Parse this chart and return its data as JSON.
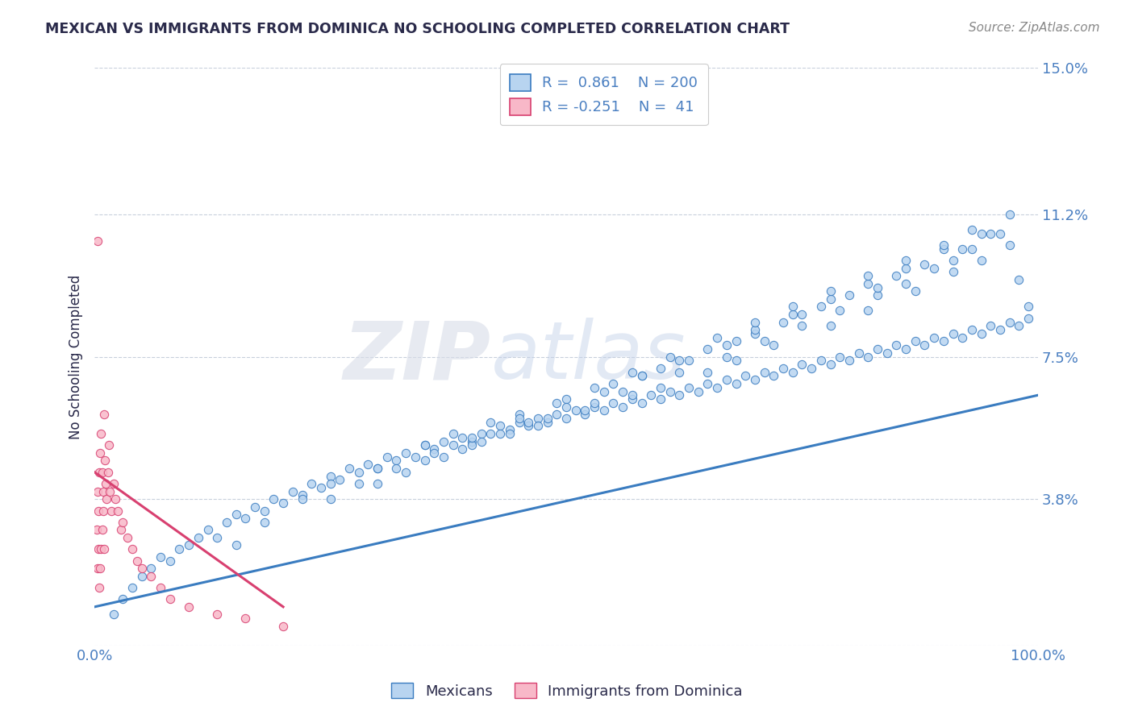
{
  "title": "MEXICAN VS IMMIGRANTS FROM DOMINICA NO SCHOOLING COMPLETED CORRELATION CHART",
  "source": "Source: ZipAtlas.com",
  "ylabel": "No Schooling Completed",
  "xlim": [
    0,
    1.0
  ],
  "ylim": [
    0,
    0.15
  ],
  "yticks": [
    0,
    0.038,
    0.075,
    0.112,
    0.15
  ],
  "ytick_labels": [
    "",
    "3.8%",
    "7.5%",
    "11.2%",
    "15.0%"
  ],
  "xtick_labels": [
    "0.0%",
    "100.0%"
  ],
  "blue_color": "#b8d4f0",
  "pink_color": "#f8b8c8",
  "line_blue": "#3a7cc0",
  "line_pink": "#d84070",
  "legend_text_color": "#4a7fc1",
  "title_color": "#2a2a4a",
  "axis_color": "#4a7fc1",
  "grid_color": "#c8d0dc",
  "scatter_blue_x": [
    0.02,
    0.03,
    0.04,
    0.05,
    0.06,
    0.07,
    0.08,
    0.09,
    0.1,
    0.11,
    0.12,
    0.13,
    0.14,
    0.15,
    0.16,
    0.17,
    0.18,
    0.19,
    0.2,
    0.21,
    0.22,
    0.23,
    0.24,
    0.25,
    0.26,
    0.27,
    0.28,
    0.29,
    0.3,
    0.31,
    0.32,
    0.33,
    0.34,
    0.35,
    0.36,
    0.37,
    0.38,
    0.39,
    0.4,
    0.41,
    0.42,
    0.43,
    0.44,
    0.45,
    0.46,
    0.47,
    0.48,
    0.49,
    0.5,
    0.51,
    0.52,
    0.53,
    0.54,
    0.55,
    0.56,
    0.57,
    0.58,
    0.59,
    0.6,
    0.61,
    0.62,
    0.63,
    0.64,
    0.65,
    0.66,
    0.67,
    0.68,
    0.69,
    0.7,
    0.71,
    0.72,
    0.73,
    0.74,
    0.75,
    0.76,
    0.77,
    0.78,
    0.79,
    0.8,
    0.81,
    0.82,
    0.83,
    0.84,
    0.85,
    0.86,
    0.87,
    0.88,
    0.89,
    0.9,
    0.91,
    0.92,
    0.93,
    0.94,
    0.95,
    0.96,
    0.97,
    0.98,
    0.99,
    0.15,
    0.18,
    0.22,
    0.25,
    0.3,
    0.35,
    0.38,
    0.42,
    0.45,
    0.5,
    0.55,
    0.58,
    0.62,
    0.65,
    0.7,
    0.73,
    0.77,
    0.8,
    0.85,
    0.88,
    0.92,
    0.95,
    0.4,
    0.43,
    0.47,
    0.52,
    0.57,
    0.6,
    0.65,
    0.68,
    0.72,
    0.78,
    0.82,
    0.87,
    0.91,
    0.94,
    0.97,
    0.35,
    0.39,
    0.44,
    0.48,
    0.53,
    0.56,
    0.62,
    0.67,
    0.71,
    0.75,
    0.79,
    0.83,
    0.86,
    0.89,
    0.93,
    0.96,
    0.3,
    0.33,
    0.37,
    0.41,
    0.46,
    0.5,
    0.54,
    0.58,
    0.63,
    0.67,
    0.7,
    0.74,
    0.78,
    0.82,
    0.86,
    0.9,
    0.94,
    0.25,
    0.28,
    0.32,
    0.36,
    0.4,
    0.45,
    0.49,
    0.53,
    0.57,
    0.61,
    0.66,
    0.7,
    0.74,
    0.78,
    0.82,
    0.86,
    0.9,
    0.93,
    0.97,
    0.98,
    0.99,
    0.6,
    0.68,
    0.75,
    0.83,
    0.91
  ],
  "scatter_blue_y": [
    0.008,
    0.012,
    0.015,
    0.018,
    0.02,
    0.023,
    0.022,
    0.025,
    0.026,
    0.028,
    0.03,
    0.028,
    0.032,
    0.034,
    0.033,
    0.036,
    0.035,
    0.038,
    0.037,
    0.04,
    0.039,
    0.042,
    0.041,
    0.044,
    0.043,
    0.046,
    0.045,
    0.047,
    0.046,
    0.049,
    0.048,
    0.05,
    0.049,
    0.052,
    0.051,
    0.053,
    0.052,
    0.054,
    0.053,
    0.055,
    0.055,
    0.057,
    0.056,
    0.058,
    0.057,
    0.059,
    0.058,
    0.06,
    0.059,
    0.061,
    0.06,
    0.062,
    0.061,
    0.063,
    0.062,
    0.064,
    0.063,
    0.065,
    0.064,
    0.066,
    0.065,
    0.067,
    0.066,
    0.068,
    0.067,
    0.069,
    0.068,
    0.07,
    0.069,
    0.071,
    0.07,
    0.072,
    0.071,
    0.073,
    0.072,
    0.074,
    0.073,
    0.075,
    0.074,
    0.076,
    0.075,
    0.077,
    0.076,
    0.078,
    0.077,
    0.079,
    0.078,
    0.08,
    0.079,
    0.081,
    0.08,
    0.082,
    0.081,
    0.083,
    0.082,
    0.084,
    0.083,
    0.085,
    0.026,
    0.032,
    0.038,
    0.042,
    0.046,
    0.052,
    0.055,
    0.058,
    0.06,
    0.064,
    0.068,
    0.07,
    0.074,
    0.077,
    0.081,
    0.084,
    0.088,
    0.091,
    0.096,
    0.099,
    0.103,
    0.107,
    0.052,
    0.055,
    0.057,
    0.061,
    0.065,
    0.067,
    0.071,
    0.074,
    0.078,
    0.083,
    0.087,
    0.092,
    0.097,
    0.1,
    0.104,
    0.048,
    0.051,
    0.055,
    0.059,
    0.063,
    0.066,
    0.071,
    0.075,
    0.079,
    0.083,
    0.087,
    0.091,
    0.094,
    0.098,
    0.103,
    0.107,
    0.042,
    0.045,
    0.049,
    0.053,
    0.058,
    0.062,
    0.066,
    0.07,
    0.074,
    0.078,
    0.082,
    0.086,
    0.09,
    0.094,
    0.098,
    0.103,
    0.107,
    0.038,
    0.042,
    0.046,
    0.05,
    0.054,
    0.059,
    0.063,
    0.067,
    0.071,
    0.075,
    0.08,
    0.084,
    0.088,
    0.092,
    0.096,
    0.1,
    0.104,
    0.108,
    0.112,
    0.095,
    0.088,
    0.072,
    0.079,
    0.086,
    0.093,
    0.1
  ],
  "scatter_pink_x": [
    0.002,
    0.003,
    0.003,
    0.004,
    0.004,
    0.005,
    0.005,
    0.006,
    0.006,
    0.007,
    0.007,
    0.008,
    0.008,
    0.009,
    0.009,
    0.01,
    0.01,
    0.011,
    0.012,
    0.013,
    0.014,
    0.015,
    0.016,
    0.018,
    0.02,
    0.022,
    0.025,
    0.028,
    0.03,
    0.035,
    0.04,
    0.045,
    0.05,
    0.06,
    0.07,
    0.08,
    0.1,
    0.13,
    0.16,
    0.2,
    0.003
  ],
  "scatter_pink_y": [
    0.03,
    0.04,
    0.02,
    0.035,
    0.025,
    0.045,
    0.015,
    0.05,
    0.02,
    0.055,
    0.025,
    0.045,
    0.03,
    0.04,
    0.035,
    0.06,
    0.025,
    0.048,
    0.042,
    0.038,
    0.045,
    0.052,
    0.04,
    0.035,
    0.042,
    0.038,
    0.035,
    0.03,
    0.032,
    0.028,
    0.025,
    0.022,
    0.02,
    0.018,
    0.015,
    0.012,
    0.01,
    0.008,
    0.007,
    0.005,
    0.105
  ],
  "blue_trendline_x": [
    0.0,
    1.0
  ],
  "blue_trendline_y": [
    0.01,
    0.065
  ],
  "pink_trendline_x": [
    0.0,
    0.2
  ],
  "pink_trendline_y": [
    0.045,
    0.01
  ],
  "dot_size_blue": 55,
  "dot_size_pink": 55
}
